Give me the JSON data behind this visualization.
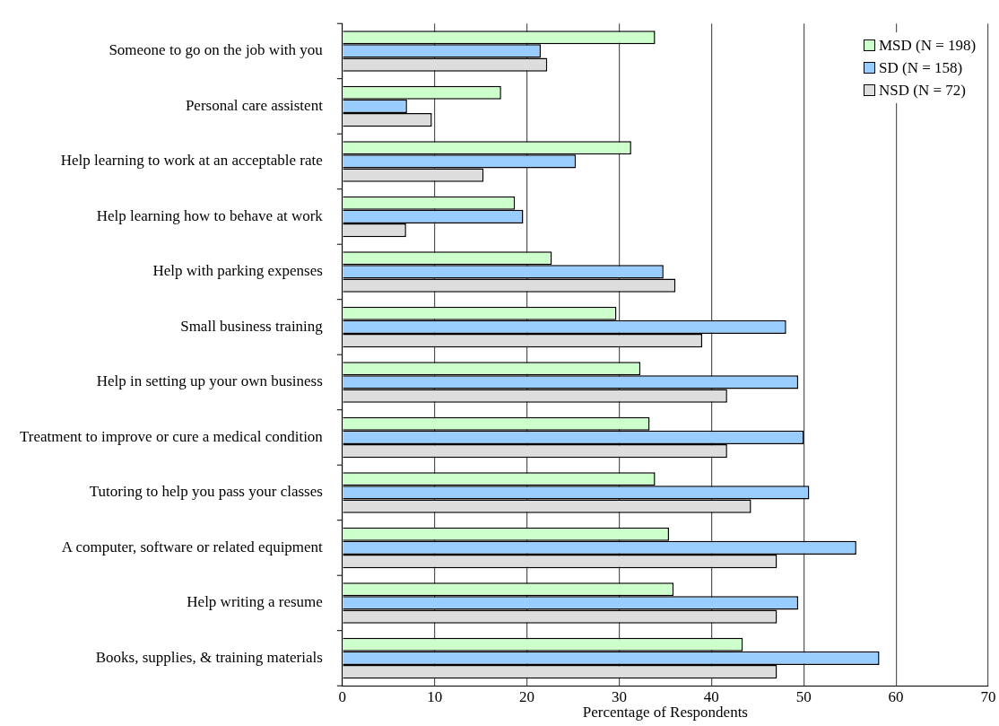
{
  "chart_data": {
    "type": "bar",
    "orientation": "horizontal",
    "xlabel": "Percentage of Respondents",
    "categories": [
      "Someone to go on the job with you",
      "Personal care assistent",
      "Help learning to work at an acceptable rate",
      "Help learning how to behave at work",
      "Help with parking expenses",
      "Small business training",
      "Help in setting up your own business",
      "Treatment to improve or cure a medical condition",
      "Tutoring to help you pass your classes",
      "A computer, software or related equipment",
      "Help writing a resume",
      "Books, supplies, & training materials"
    ],
    "series": [
      {
        "name": "MSD (N = 198)",
        "color": "#ccffcc",
        "values": [
          33.9,
          17.2,
          31.3,
          18.7,
          22.7,
          29.7,
          32.3,
          33.3,
          33.9,
          35.4,
          35.9,
          43.4
        ]
      },
      {
        "name": "SD (N = 158)",
        "color": "#99ccff",
        "values": [
          21.5,
          7.0,
          25.3,
          19.6,
          34.8,
          48.1,
          49.4,
          50.0,
          50.6,
          55.7,
          49.4,
          58.2
        ]
      },
      {
        "name": "NSD (N = 72)",
        "color": "#dddddd",
        "values": [
          22.2,
          9.7,
          15.3,
          6.9,
          36.1,
          39.0,
          41.7,
          41.7,
          44.3,
          47.1,
          47.1,
          47.1
        ]
      }
    ],
    "xlim": [
      0,
      70
    ],
    "xticks": [
      0,
      10,
      20,
      30,
      40,
      50,
      60,
      70
    ],
    "grid": "x",
    "legend": "top right"
  }
}
